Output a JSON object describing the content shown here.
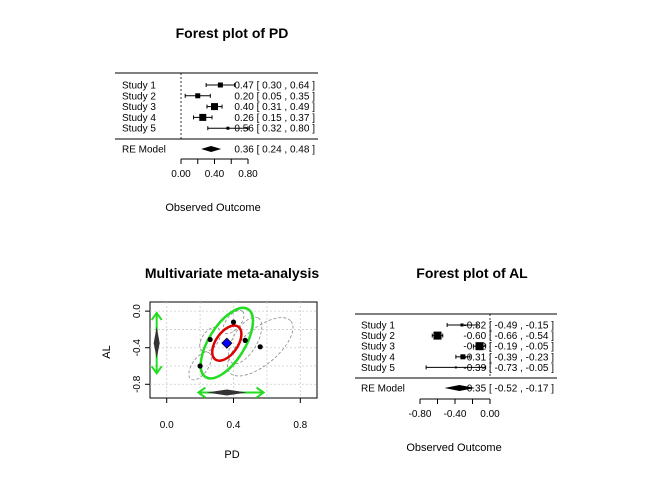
{
  "chart_data": [
    {
      "type": "forest",
      "title": "Forest plot of PD",
      "xlabel": "Observed Outcome",
      "xticks": [
        "0.00",
        "0.40",
        "0.80"
      ],
      "xlim": [
        0.0,
        0.8
      ],
      "studies": [
        {
          "label": "Study  1",
          "est": 0.47,
          "lo": 0.3,
          "hi": 0.64,
          "ci_text": "0.47 [ 0.30 , 0.64 ]"
        },
        {
          "label": "Study  2",
          "est": 0.2,
          "lo": 0.05,
          "hi": 0.35,
          "ci_text": "0.20 [ 0.05 , 0.35 ]"
        },
        {
          "label": "Study  3",
          "est": 0.4,
          "lo": 0.31,
          "hi": 0.49,
          "ci_text": "0.40 [ 0.31 , 0.49 ]"
        },
        {
          "label": "Study  4",
          "est": 0.26,
          "lo": 0.15,
          "hi": 0.37,
          "ci_text": "0.26 [ 0.15 , 0.37 ]"
        },
        {
          "label": "Study  5",
          "est": 0.56,
          "lo": 0.32,
          "hi": 0.8,
          "ci_text": "0.56 [ 0.32 , 0.80 ]"
        }
      ],
      "summary": {
        "label": "RE Model",
        "est": 0.36,
        "lo": 0.24,
        "hi": 0.48,
        "ci_text": "0.36 [ 0.24 , 0.48 ]"
      }
    },
    {
      "type": "scatter",
      "title": "Multivariate meta-analysis",
      "xlabel": "PD",
      "ylabel": "AL",
      "xticks": [
        "0.0",
        "0.4",
        "0.8"
      ],
      "yticks": [
        "0.0",
        "-0.4",
        "-0.8"
      ],
      "xlim": [
        -0.1,
        0.9
      ],
      "ylim": [
        -0.95,
        0.1
      ],
      "grid": true,
      "points": [
        {
          "x": 0.47,
          "y": -0.32
        },
        {
          "x": 0.2,
          "y": -0.6
        },
        {
          "x": 0.4,
          "y": -0.12
        },
        {
          "x": 0.26,
          "y": -0.31
        },
        {
          "x": 0.56,
          "y": -0.39
        }
      ],
      "summary_point": {
        "x": 0.36,
        "y": -0.35
      },
      "colors": {
        "summary": "#0000ff",
        "conf_region": "#dd0000",
        "pred_region": "#22dd22",
        "study_regions": "#888888"
      }
    },
    {
      "type": "forest",
      "title": "Forest plot of AL",
      "xlabel": "Observed Outcome",
      "xticks": [
        "-0.80",
        "-0.40",
        "0.00"
      ],
      "xlim": [
        -0.8,
        0.0
      ],
      "studies": [
        {
          "label": "Study  1",
          "est": -0.32,
          "lo": -0.49,
          "hi": -0.15,
          "ci_text": "-0.32 [ -0.49 , -0.15 ]"
        },
        {
          "label": "Study  2",
          "est": -0.6,
          "lo": -0.66,
          "hi": -0.54,
          "ci_text": "-0.60 [ -0.66 , -0.54 ]"
        },
        {
          "label": "Study  3",
          "est": -0.12,
          "lo": -0.19,
          "hi": -0.05,
          "ci_text": "-0.12 [ -0.19 , -0.05 ]"
        },
        {
          "label": "Study  4",
          "est": -0.31,
          "lo": -0.39,
          "hi": -0.23,
          "ci_text": "-0.31 [ -0.39 , -0.23 ]"
        },
        {
          "label": "Study  5",
          "est": -0.39,
          "lo": -0.73,
          "hi": -0.05,
          "ci_text": "-0.39 [ -0.73 , -0.05 ]"
        }
      ],
      "summary": {
        "label": "RE Model",
        "est": -0.35,
        "lo": -0.52,
        "hi": -0.17,
        "ci_text": "-0.35 [ -0.52 , -0.17 ]"
      }
    }
  ]
}
